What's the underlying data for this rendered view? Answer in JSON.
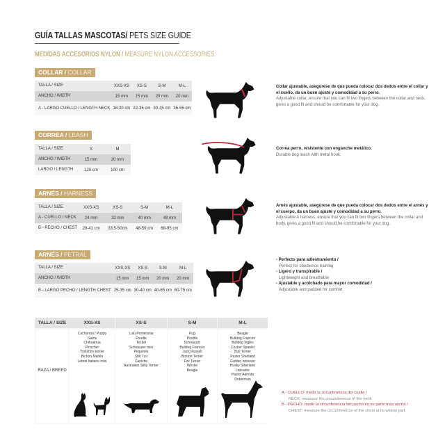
{
  "title": {
    "es": "GUÍA TALLAS MASCOTAS/",
    "en": " PETS SIZE GUIDE"
  },
  "subtitle": {
    "es": "MEDIDAS ACCESORIOS NYLON /",
    "en": " MEASURE NYLON ACCESSORIES:"
  },
  "collar": {
    "label_es": "COLLAR /",
    "label_en": " COLLAR",
    "header": [
      "TALLA / SIZE",
      "XXS-XS",
      "XS-S",
      "S-M",
      "M-L"
    ],
    "rows": [
      [
        "ANCHO / WIDTH",
        "15 mm",
        "15 mm",
        "20 mm",
        "20 mm"
      ],
      [
        "A - LARGO CUELLO / LENGTH NECK",
        "18-30 cm",
        "22-35 cm",
        "30-45 cm",
        "35-55 cm"
      ]
    ],
    "desc_es": "Collar ajustable, asegúrese de que pueda colocar dos dedos entre el collar y el cuello, da un buen ajuste y comodidad a su perro.",
    "desc_en": "Adjustable collar, ensure that you can fit two fingers between the collar and neck, gives a good fit and should be comfortable for your dog."
  },
  "leash": {
    "label_es": "CORREA /",
    "label_en": " LEASH",
    "header": [
      "TALLA / SIZE",
      "S",
      "M"
    ],
    "rows": [
      [
        "ANCHO / WIDTH",
        "15 mm",
        "20 mm"
      ],
      [
        "LARGO / LENGTH",
        "120 cm",
        "100 cm"
      ]
    ],
    "desc_es": "Correa perro, resistente con enganche metálico.",
    "desc_en": "Durable dog leash with metal hook."
  },
  "harness": {
    "label_es": "ARNÉS /",
    "label_en": " HARNESS",
    "header": [
      "TALLA / SIZE",
      "XXS-XS",
      "XS-S",
      "S-M",
      "M-L"
    ],
    "rows": [
      [
        "A - CUELLO / NECK",
        "24 mm",
        "32 mm",
        "40 mm",
        "48 mm"
      ],
      [
        "B - PECHO / CHEST",
        "29-41 cm",
        "33,5-50cm",
        "48-59 cm",
        "68-95 cm"
      ]
    ],
    "desc_es": "Arnés ajustable, asegúrese de que pueda colocar dos dedos entre el arnés y el cuerpo, da un buen ajuste y comodidad a su perro.",
    "desc_en": "Adjustable A harness, ensure that you can fit two fingers between the collar and body, gives a good fit and should be comfortable for your dog."
  },
  "petral": {
    "label_es": "ARNÉS /",
    "label_en": " PETRAL",
    "header": [
      "TALLA / SIZE",
      "XXS-XS",
      "XS-S",
      "S-M",
      "M-L"
    ],
    "rows": [
      [
        "ANCHO / WIDTH",
        "15 mm",
        "15 mm",
        "20 mm",
        "20 mm"
      ],
      [
        "B - LARGO PECHO / LENGTH CHEST",
        "25-35 cm",
        "30-40 cm",
        "40-65 cm",
        "60-75 cm"
      ]
    ],
    "features": [
      {
        "es": "- Perfecto para adiestramiento /",
        "en": "Perfect for obedience training"
      },
      {
        "es": "- Ligero y transpirable /",
        "en": "Lightweight and breathable"
      },
      {
        "es": "- Ajustable y acolchado para mayor comodidad /",
        "en": "Adjustable and padded for comfort"
      }
    ]
  },
  "breeds": {
    "header": [
      "TALLA / SIZE",
      "XXS-XS",
      "XS-S",
      "S-M",
      "M-L"
    ],
    "row_label": "RAZA / BREED",
    "columns": [
      [
        "Cachorros / Puppy",
        "Gatos",
        "Chihuahua",
        "Pinscher",
        "Yorkshire terrier",
        "Bichón Maltés",
        "Lebrel Italiano mini"
      ],
      [
        "Lulú Pomerania",
        "Poodle",
        "Teckel",
        "Schnauzer mini",
        "Pequinés",
        "Shit Tzu",
        "Caniche",
        "Australian Silky Terrier"
      ],
      [
        "Pug",
        "Poodle",
        "Schnauzer",
        "Bulldog Francés",
        "Jack Russell",
        "Boston Terrier",
        "Fox Terrier",
        "Westie",
        "Beagle"
      ],
      [
        "Beagle",
        "Bulldog Francés",
        "Bulldog Inglés",
        "Cocker Spaniel",
        "Bull Terrier",
        "Pastor Shetland",
        "Golden retriever",
        "Husky Siberiano",
        "Labrador",
        "Pastor Alemán",
        "Doberman"
      ]
    ]
  },
  "legend": [
    {
      "es": "A - CUELLO: medir la circunferencia del cuello /",
      "en": "NECK: measure the circumference of the neck"
    },
    {
      "es": "B - PECHO: medir la circunferencia del pecho en su parte más ancha /",
      "en": "CHEST: measure the circumference of the chest at its widest part"
    }
  ],
  "colors": {
    "gold": "#c9aa72",
    "accent_red": "#c0283a",
    "silhouette": "#111111"
  }
}
